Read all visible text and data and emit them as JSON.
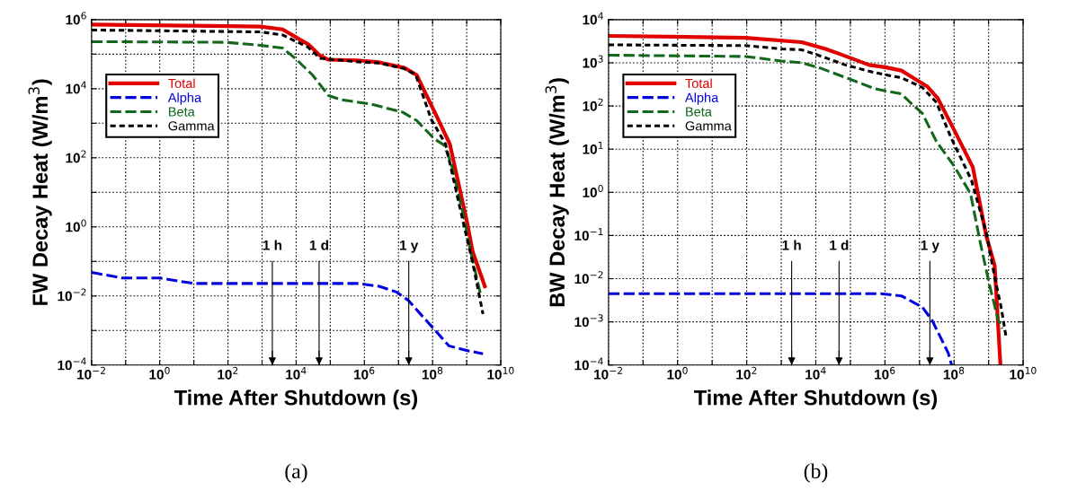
{
  "chart_data": [
    {
      "type": "line",
      "xlabel": "Time After Shutdown (s)",
      "ylabel": "FW Decay Heat (W/m$^{3}$)",
      "log": "xy",
      "grid": true,
      "legend": "top left",
      "xlim": [
        0.01,
        10000000000
      ],
      "ylim": [
        0.0001,
        1000000
      ],
      "xticks": [
        {
          "value": 0.01,
          "label": "10$^{−2}$"
        },
        {
          "value": 0.1,
          "label": null
        },
        {
          "value": 1,
          "label": "10$^{0}$"
        },
        {
          "value": 10,
          "label": null
        },
        {
          "value": 100,
          "label": "10$^{2}$"
        },
        {
          "value": 1000,
          "label": null
        },
        {
          "value": 10000,
          "label": "10$^{4}$"
        },
        {
          "value": 100000,
          "label": null
        },
        {
          "value": 1000000,
          "label": "10$^{6}$"
        },
        {
          "value": 10000000,
          "label": null
        },
        {
          "value": 100000000,
          "label": "10$^{8}$"
        },
        {
          "value": 1000000000,
          "label": null
        },
        {
          "value": 10000000000,
          "label": "10$^{10}$"
        }
      ],
      "yticks": [
        {
          "value": 0.0001,
          "label": "10$^{−4}$"
        },
        {
          "value": 0.001,
          "label": null
        },
        {
          "value": 0.01,
          "label": "10$^{−2}$"
        },
        {
          "value": 0.1,
          "label": null
        },
        {
          "value": 1,
          "label": "10$^{0}$"
        },
        {
          "value": 10,
          "label": null
        },
        {
          "value": 100,
          "label": "10$^{2}$"
        },
        {
          "value": 1000,
          "label": null
        },
        {
          "value": 10000,
          "label": "10$^{4}$"
        },
        {
          "value": 100000,
          "label": null
        },
        {
          "value": 1000000,
          "label": "10$^{6}$"
        }
      ],
      "series": [
        {
          "name": "Total",
          "color": "#e00000",
          "line_style": "solid",
          "x": [
            0.01,
            900,
            4000,
            23000,
            50000,
            89000,
            630000,
            2700000,
            15000000,
            34000000,
            110000000,
            320000000,
            1050000000,
            1500000000,
            3400000000
          ],
          "values": [
            720000,
            630000,
            520000,
            190000,
            91000,
            69000,
            66000,
            58000,
            40000,
            25000,
            2300,
            250,
            1.2,
            0.19,
            0.019
          ]
        },
        {
          "name": "Alpha",
          "color": "#0000e0",
          "line_style": "dashed",
          "x": [
            0.01,
            0.078,
            1,
            10,
            690000,
            2700000,
            8700000,
            19000000,
            110000000,
            300000000,
            780000000,
            3000000000
          ],
          "values": [
            0.048,
            0.033,
            0.033,
            0.023,
            0.023,
            0.019,
            0.013,
            0.0076,
            0.0011,
            0.00036,
            0.00028,
            0.00021
          ]
        },
        {
          "name": "Beta",
          "color": "#13671a",
          "line_style": "dashed",
          "x": [
            0.01,
            87,
            900,
            4000,
            9300,
            30000,
            89000,
            210000,
            1500000,
            13000000,
            34000000,
            110000000,
            220000000,
            350000000,
            780000000,
            1260000000,
            2500000000
          ],
          "values": [
            230000,
            220000,
            180000,
            150000,
            76000,
            25000,
            6300,
            4800,
            3600,
            2100,
            1200,
            360,
            230,
            69,
            2.5,
            0.23,
            0.012
          ]
        },
        {
          "name": "Gamma",
          "color": "#000000",
          "line_style": "dotted",
          "x": [
            0.01,
            900,
            4000,
            22000,
            50000,
            630000,
            2700000,
            15000000,
            32000000,
            91000000,
            240000000,
            350000000,
            850000000,
            1500000000,
            3000000000
          ],
          "values": [
            500000,
            440000,
            360000,
            160000,
            76000,
            60000,
            55000,
            38000,
            25000,
            1300,
            250,
            48,
            1,
            0.091,
            0.003
          ]
        }
      ],
      "ref_lines": [
        {
          "axis": "x",
          "value": 2000,
          "label": "1 h"
        },
        {
          "axis": "x",
          "value": 47000,
          "label": "1 d"
        },
        {
          "axis": "x",
          "value": 20000000,
          "label": "1 y"
        }
      ],
      "annotations": [
        "(a)"
      ]
    },
    {
      "type": "line",
      "xlabel": "Time After Shutdown (s)",
      "ylabel": "BW Decay Heat (W/m$^{3}$)",
      "log": "xy",
      "grid": true,
      "legend": "top left",
      "xlim": [
        0.01,
        10000000000
      ],
      "ylim": [
        0.0001,
        10000
      ],
      "xticks": [
        {
          "value": 0.01,
          "label": "10$^{−2}$"
        },
        {
          "value": 0.1,
          "label": null
        },
        {
          "value": 1,
          "label": "10$^{0}$"
        },
        {
          "value": 10,
          "label": null
        },
        {
          "value": 100,
          "label": "10$^{2}$"
        },
        {
          "value": 1000,
          "label": null
        },
        {
          "value": 10000,
          "label": "10$^{4}$"
        },
        {
          "value": 100000,
          "label": null
        },
        {
          "value": 1000000,
          "label": "10$^{6}$"
        },
        {
          "value": 10000000,
          "label": null
        },
        {
          "value": 100000000,
          "label": "10$^{8}$"
        },
        {
          "value": 1000000000,
          "label": null
        },
        {
          "value": 10000000000,
          "label": "10$^{10}$"
        }
      ],
      "yticks": [
        {
          "value": 0.0001,
          "label": "10$^{−4}$"
        },
        {
          "value": 0.001,
          "label": "10$^{−3}$"
        },
        {
          "value": 0.01,
          "label": "10$^{−2}$"
        },
        {
          "value": 0.1,
          "label": "10$^{−1}$"
        },
        {
          "value": 1,
          "label": "10$^{0}$"
        },
        {
          "value": 10,
          "label": "10$^{1}$"
        },
        {
          "value": 100,
          "label": "10$^{2}$"
        },
        {
          "value": 1000,
          "label": "10$^{3}$"
        },
        {
          "value": 10000,
          "label": "10$^{4}$"
        }
      ],
      "series": [
        {
          "name": "Total",
          "color": "#e00000",
          "line_style": "solid",
          "x": [
            0.01,
            95,
            3900,
            19000,
            49000,
            350000,
            1000000,
            3000000,
            17000000,
            34000000,
            100000000,
            350000000,
            850000000,
            1500000000,
            2200000000
          ],
          "values": [
            4200,
            3800,
            3000,
            2100,
            1600,
            890,
            790,
            660,
            280,
            150,
            28,
            3.8,
            0.1,
            0.02,
            0.0001
          ]
        },
        {
          "name": "Alpha",
          "color": "#0000e0",
          "line_style": "dashed",
          "x": [
            0.01,
            760000,
            3000000,
            12000000,
            23000000,
            68000000,
            85000000
          ],
          "values": [
            0.0045,
            0.0045,
            0.004,
            0.0022,
            0.0011,
            0.00019,
            0.0001
          ]
        },
        {
          "name": "Beta",
          "color": "#13671a",
          "line_style": "dashed",
          "x": [
            0.01,
            95,
            1000,
            3900,
            13000,
            89000,
            510000,
            3000000,
            5400000,
            12000000,
            31000000,
            100000000,
            300000000,
            580000000,
            1050000000,
            1900000000,
            2500000000
          ],
          "values": [
            1500,
            1400,
            1100,
            1000,
            760,
            430,
            250,
            190,
            120,
            68,
            15,
            4.1,
            0.93,
            0.066,
            0.0074,
            0.0011,
            0.0007
          ]
        },
        {
          "name": "Gamma",
          "color": "#000000",
          "line_style": "dotted",
          "x": [
            0.01,
            95,
            1000,
            3900,
            15000,
            72000,
            510000,
            3000000,
            12000000,
            31000000,
            83000000,
            320000000,
            850000000,
            1500000000,
            2300000000,
            3200000000
          ],
          "values": [
            2600,
            2500,
            2100,
            2000,
            1400,
            890,
            590,
            450,
            270,
            120,
            18,
            1.9,
            0.12,
            0.011,
            0.0022,
            0.00045
          ]
        }
      ],
      "ref_lines": [
        {
          "axis": "x",
          "value": 2000,
          "label": "1 h"
        },
        {
          "axis": "x",
          "value": 47000,
          "label": "1 d"
        },
        {
          "axis": "x",
          "value": 20000000,
          "label": "1 y"
        }
      ],
      "annotations": [
        "(b)"
      ]
    }
  ]
}
